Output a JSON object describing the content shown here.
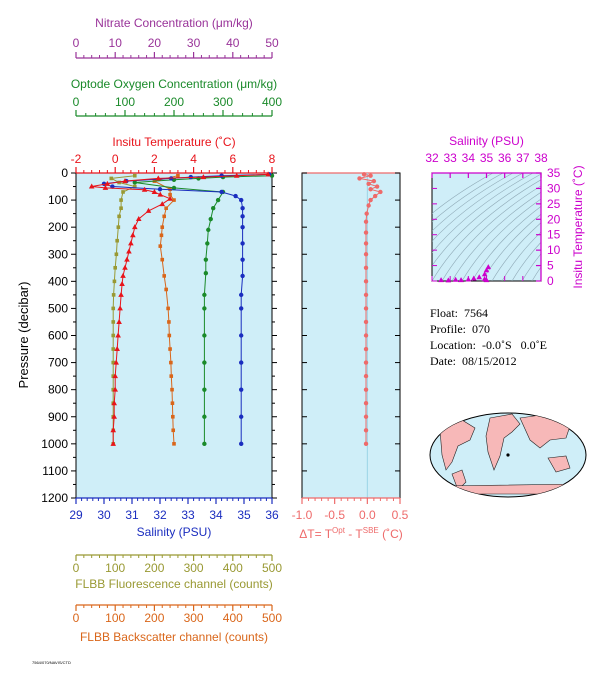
{
  "colors": {
    "nitrate": "#993399",
    "oxygen": "#1a8a2a",
    "temperature": "#e8141b",
    "salinity": "#1a2dbf",
    "fluorescence": "#999933",
    "backscatter": "#d9661a",
    "delta_t": "#ee6a6a",
    "inset": "#cc00cc",
    "plot_bg": "#cfeef8"
  },
  "metadata": {
    "float_label": "Float:  7564",
    "profile_label": "Profile:  070",
    "location_label": "Location:  -0.0˚S   0.0˚E",
    "date_label": "Date:  08/15/2012"
  },
  "footer_text": "7564/070/NAVIS/CTD",
  "chart_data": [
    {
      "type": "line",
      "name": "main-profile",
      "yaxis": {
        "label": "Pressure (decibar)",
        "range": [
          0,
          1200
        ],
        "inverted": true,
        "ticks": [
          0,
          100,
          200,
          300,
          400,
          500,
          600,
          700,
          800,
          900,
          1000,
          1100,
          1200
        ]
      },
      "axes": {
        "nitrate": {
          "label": "Nitrate Concentration (μm/kg)",
          "range": [
            0,
            50
          ],
          "ticks": [
            0,
            10,
            20,
            30,
            40,
            50
          ]
        },
        "oxygen": {
          "label": "Optode Oxygen Concentration (μm/kg)",
          "range": [
            0,
            400
          ],
          "ticks": [
            0,
            100,
            200,
            300,
            400
          ]
        },
        "temperature": {
          "label": "Insitu Temperature (˚C)",
          "range": [
            -2,
            8
          ],
          "ticks": [
            -2,
            0,
            2,
            4,
            6,
            8
          ]
        },
        "salinity": {
          "label": "Salinity (PSU)",
          "range": [
            29,
            36
          ],
          "ticks": [
            29,
            30,
            31,
            32,
            33,
            34,
            35,
            36
          ]
        },
        "fluorescence": {
          "label": "FLBB Fluorescence channel (counts)",
          "range": [
            0,
            500
          ],
          "ticks": [
            0,
            100,
            200,
            300,
            400,
            500
          ]
        },
        "backscatter": {
          "label": "FLBB Backscatter channel (counts)",
          "range": [
            0,
            500
          ],
          "ticks": [
            0,
            100,
            200,
            300,
            400,
            500
          ]
        }
      },
      "series": [
        {
          "name": "temperature",
          "axis": "temperature",
          "marker": "triangle",
          "points": [
            [
              7.8,
              5
            ],
            [
              6.2,
              10
            ],
            [
              4.5,
              15
            ],
            [
              2.2,
              20
            ],
            [
              0.5,
              30
            ],
            [
              -0.4,
              40
            ],
            [
              -1.2,
              50
            ],
            [
              -0.5,
              55
            ],
            [
              1.5,
              62
            ],
            [
              2.0,
              70
            ],
            [
              2.3,
              80
            ],
            [
              2.8,
              95
            ],
            [
              2.4,
              115
            ],
            [
              1.7,
              140
            ],
            [
              1.2,
              170
            ],
            [
              1.0,
              200
            ],
            [
              0.9,
              230
            ],
            [
              0.8,
              260
            ],
            [
              0.7,
              290
            ],
            [
              0.6,
              320
            ],
            [
              0.5,
              350
            ],
            [
              0.4,
              380
            ],
            [
              0.35,
              410
            ],
            [
              0.3,
              450
            ],
            [
              0.25,
              500
            ],
            [
              0.2,
              550
            ],
            [
              0.15,
              600
            ],
            [
              0.1,
              650
            ],
            [
              0.05,
              700
            ],
            [
              0.0,
              750
            ],
            [
              0.0,
              800
            ],
            [
              -0.05,
              850
            ],
            [
              -0.05,
              900
            ],
            [
              -0.1,
              950
            ],
            [
              -0.1,
              1000
            ]
          ]
        },
        {
          "name": "salinity",
          "axis": "salinity",
          "marker": "circle",
          "points": [
            [
              35.9,
              5
            ],
            [
              34.2,
              10
            ],
            [
              33.1,
              15
            ],
            [
              32.4,
              20
            ],
            [
              30.8,
              30
            ],
            [
              30.0,
              40
            ],
            [
              30.3,
              50
            ],
            [
              32.0,
              60
            ],
            [
              34.2,
              70
            ],
            [
              34.7,
              85
            ],
            [
              34.9,
              100
            ],
            [
              34.95,
              130
            ],
            [
              34.95,
              160
            ],
            [
              34.95,
              200
            ],
            [
              34.95,
              260
            ],
            [
              34.95,
              320
            ],
            [
              34.95,
              380
            ],
            [
              34.9,
              450
            ],
            [
              34.9,
              500
            ],
            [
              34.9,
              600
            ],
            [
              34.9,
              700
            ],
            [
              34.9,
              800
            ],
            [
              34.9,
              900
            ],
            [
              34.9,
              1000
            ]
          ]
        },
        {
          "name": "oxygen",
          "axis": "oxygen",
          "marker": "circle",
          "points": [
            [
              400,
              10
            ],
            [
              300,
              15
            ],
            [
              250,
              20
            ],
            [
              200,
              25
            ],
            [
              120,
              35
            ],
            [
              200,
              55
            ],
            [
              300,
              70
            ],
            [
              290,
              100
            ],
            [
              280,
              130
            ],
            [
              275,
              170
            ],
            [
              270,
              210
            ],
            [
              268,
              260
            ],
            [
              265,
              320
            ],
            [
              265,
              370
            ],
            [
              262,
              450
            ],
            [
              262,
              500
            ],
            [
              262,
              600
            ],
            [
              262,
              700
            ],
            [
              262,
              800
            ],
            [
              262,
              900
            ],
            [
              262,
              1000
            ]
          ]
        },
        {
          "name": "fluorescence",
          "axis": "fluorescence",
          "marker": "square",
          "points": [
            [
              150,
              10
            ],
            [
              90,
              20
            ],
            [
              110,
              35
            ],
            [
              150,
              50
            ],
            [
              120,
              70
            ],
            [
              115,
              100
            ],
            [
              115,
              130
            ],
            [
              110,
              160
            ],
            [
              108,
              200
            ],
            [
              105,
              250
            ],
            [
              103,
              300
            ],
            [
              100,
              350
            ],
            [
              98,
              400
            ],
            [
              96,
              450
            ],
            [
              95,
              500
            ],
            [
              95,
              550
            ],
            [
              95,
              600
            ],
            [
              95,
              650
            ],
            [
              95,
              700
            ],
            [
              95,
              750
            ],
            [
              95,
              800
            ],
            [
              95,
              850
            ],
            [
              95,
              900
            ],
            [
              95,
              950
            ],
            [
              95,
              1000
            ]
          ]
        },
        {
          "name": "backscatter",
          "axis": "backscatter",
          "marker": "square",
          "points": [
            [
              260,
              10
            ],
            [
              200,
              30
            ],
            [
              240,
              60
            ],
            [
              240,
              80
            ],
            [
              250,
              100
            ],
            [
              230,
              130
            ],
            [
              225,
              160
            ],
            [
              220,
              200
            ],
            [
              218,
              230
            ],
            [
              215,
              270
            ],
            [
              220,
              320
            ],
            [
              225,
              380
            ],
            [
              230,
              430
            ],
            [
              235,
              500
            ],
            [
              237,
              550
            ],
            [
              238,
              600
            ],
            [
              240,
              650
            ],
            [
              242,
              700
            ],
            [
              243,
              750
            ],
            [
              245,
              800
            ],
            [
              246,
              850
            ],
            [
              247,
              900
            ],
            [
              248,
              950
            ],
            [
              250,
              1000
            ]
          ]
        },
        {
          "name": "nitrate",
          "axis": "nitrate",
          "marker": "none",
          "points": []
        }
      ]
    },
    {
      "type": "line",
      "name": "delta-t",
      "xlabel_parts": [
        "ΔT= T",
        "Opt",
        " - T",
        "SBE",
        " (˚C)"
      ],
      "xaxis": {
        "range": [
          -1.0,
          0.5
        ],
        "ticks": [
          -1.0,
          -0.5,
          0.0,
          0.5
        ],
        "tick_labels": [
          "-1.0",
          "-0.5",
          "0.0",
          "0.5"
        ]
      },
      "yaxis": {
        "range": [
          0,
          1200
        ],
        "inverted": true
      },
      "series": [
        {
          "name": "delta-t",
          "marker": "circle",
          "points": [
            [
              -0.05,
              5
            ],
            [
              0.05,
              10
            ],
            [
              -0.12,
              20
            ],
            [
              0.1,
              30
            ],
            [
              0.02,
              40
            ],
            [
              0.15,
              50
            ],
            [
              0.05,
              60
            ],
            [
              0.2,
              70
            ],
            [
              0.12,
              85
            ],
            [
              0.05,
              100
            ],
            [
              0.02,
              120
            ],
            [
              -0.01,
              150
            ],
            [
              -0.02,
              180
            ],
            [
              -0.02,
              220
            ],
            [
              -0.02,
              260
            ],
            [
              -0.02,
              300
            ],
            [
              -0.02,
              350
            ],
            [
              -0.02,
              400
            ],
            [
              -0.02,
              450
            ],
            [
              -0.02,
              500
            ],
            [
              -0.02,
              550
            ],
            [
              -0.02,
              600
            ],
            [
              -0.02,
              650
            ],
            [
              -0.02,
              700
            ],
            [
              -0.02,
              750
            ],
            [
              -0.02,
              800
            ],
            [
              -0.02,
              850
            ],
            [
              -0.02,
              900
            ],
            [
              -0.02,
              950
            ],
            [
              -0.02,
              1000
            ]
          ]
        }
      ]
    },
    {
      "type": "scatter",
      "name": "ts-inset",
      "xlabel": "Salinity (PSU)",
      "ylabel": "Insitu Temperature (˚C)",
      "xaxis": {
        "range": [
          32,
          38
        ],
        "ticks": [
          32,
          33,
          34,
          35,
          36,
          37,
          38
        ]
      },
      "yaxis": {
        "range": [
          0,
          35
        ],
        "ticks": [
          0,
          5,
          10,
          15,
          20,
          25,
          30,
          35
        ]
      },
      "series": [
        {
          "name": "ts-points",
          "marker": "triangle",
          "points": [
            [
              32.5,
              0.3
            ],
            [
              32.9,
              0.2
            ],
            [
              33.3,
              0.4
            ],
            [
              33.6,
              0.3
            ],
            [
              34.0,
              0.5
            ],
            [
              34.3,
              0.8
            ],
            [
              34.6,
              1.2
            ],
            [
              34.9,
              2.2
            ],
            [
              35.0,
              3.5
            ],
            [
              35.1,
              4.5
            ],
            [
              34.9,
              0.6
            ],
            [
              35.0,
              0.3
            ]
          ]
        }
      ]
    }
  ]
}
